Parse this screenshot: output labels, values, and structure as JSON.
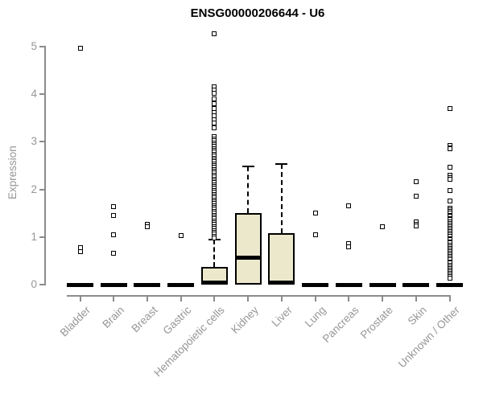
{
  "page": {
    "background": "#FFFFFF"
  },
  "colors": {
    "title": "#000000",
    "axis": "#8C8C8C",
    "tick_text": "#969696",
    "box_fill": "#ECE8CC",
    "box_border": "#000000",
    "median": "#000000",
    "whisker": "#000000",
    "outlier_fill": "#FFFFFF"
  },
  "chart_data": {
    "type": "boxplot",
    "title": "ENSG00000206644 - U6",
    "xlabel": "",
    "ylabel": "Expression",
    "ylim": [
      0,
      5
    ],
    "yticks": [
      0,
      1,
      2,
      3,
      4,
      5
    ],
    "grid": false,
    "legend": null,
    "categories": [
      "Bladder",
      "Brain",
      "Breast",
      "Gastric",
      "Hematopoietic cells",
      "Kidney",
      "Liver",
      "Lung",
      "Pancreas",
      "Prostate",
      "Skin",
      "Unknown / Other"
    ],
    "boxes": [
      {
        "category": "Bladder",
        "q1": 0,
        "median": 0,
        "q3": 0,
        "whisker_low": 0,
        "whisker_high": 0,
        "outliers": [
          4.97,
          0.78,
          0.69
        ]
      },
      {
        "category": "Brain",
        "q1": 0,
        "median": 0,
        "q3": 0,
        "whisker_low": 0,
        "whisker_high": 0,
        "outliers": [
          1.64,
          1.45,
          1.04,
          0.66
        ]
      },
      {
        "category": "Breast",
        "q1": 0,
        "median": 0,
        "q3": 0,
        "whisker_low": 0,
        "whisker_high": 0,
        "outliers": [
          1.27,
          1.21
        ]
      },
      {
        "category": "Gastric",
        "q1": 0,
        "median": 0,
        "q3": 0,
        "whisker_low": 0,
        "whisker_high": 0,
        "outliers": [
          1.03
        ]
      },
      {
        "category": "Hematopoietic cells",
        "q1": 0,
        "median": 0.02,
        "q3": 0.37,
        "whisker_low": 0,
        "whisker_high": 0.95,
        "outliers": [
          5.27,
          4.15,
          4.08,
          4.02,
          3.9,
          3.8,
          3.7,
          3.62,
          3.55,
          3.47,
          3.4,
          3.3,
          3.1,
          3.06,
          3.02,
          2.98,
          2.94,
          2.9,
          2.86,
          2.82,
          2.78,
          2.74,
          2.7,
          2.66,
          2.62,
          2.58,
          2.54,
          2.5,
          2.46,
          2.42,
          2.38,
          2.34,
          2.3,
          2.26,
          2.22,
          2.18,
          2.14,
          2.1,
          2.06,
          2.02,
          1.98,
          1.94,
          1.9,
          1.86,
          1.82,
          1.78,
          1.74,
          1.7,
          1.66,
          1.62,
          1.58,
          1.54,
          1.5,
          1.46,
          1.42,
          1.38,
          1.34,
          1.3,
          1.26,
          1.22,
          1.18,
          1.14,
          1.1,
          1.06,
          1.02,
          0.98
        ]
      },
      {
        "category": "Kidney",
        "q1": 0,
        "median": 0.57,
        "q3": 1.51,
        "whisker_low": 0,
        "whisker_high": 2.48,
        "outliers": []
      },
      {
        "category": "Liver",
        "q1": 0,
        "median": 0.03,
        "q3": 1.08,
        "whisker_low": 0,
        "whisker_high": 2.53,
        "outliers": []
      },
      {
        "category": "Lung",
        "q1": 0,
        "median": 0,
        "q3": 0,
        "whisker_low": 0,
        "whisker_high": 0,
        "outliers": [
          1.5,
          1.04
        ]
      },
      {
        "category": "Pancreas",
        "q1": 0,
        "median": 0,
        "q3": 0,
        "whisker_low": 0,
        "whisker_high": 0,
        "outliers": [
          1.65,
          0.86,
          0.8
        ]
      },
      {
        "category": "Prostate",
        "q1": 0,
        "median": 0,
        "q3": 0,
        "whisker_low": 0,
        "whisker_high": 0,
        "outliers": [
          1.21
        ]
      },
      {
        "category": "Skin",
        "q1": 0,
        "median": 0,
        "q3": 0,
        "whisker_low": 0,
        "whisker_high": 0,
        "outliers": [
          2.16,
          1.86,
          1.31,
          1.27,
          1.23
        ]
      },
      {
        "category": "Unknown / Other",
        "q1": 0,
        "median": 0,
        "q3": 0,
        "whisker_low": 0,
        "whisker_high": 0,
        "outliers": [
          3.7,
          2.92,
          2.88,
          2.85,
          2.47,
          2.3,
          2.25,
          2.21,
          1.97,
          1.75,
          1.6,
          1.57,
          1.53,
          1.5,
          1.46,
          1.43,
          1.39,
          1.36,
          1.32,
          1.29,
          1.25,
          1.22,
          1.18,
          1.15,
          1.11,
          1.08,
          1.04,
          1.01,
          0.97,
          0.94,
          0.9,
          0.87,
          0.83,
          0.8,
          0.76,
          0.73,
          0.69,
          0.66,
          0.62,
          0.59,
          0.55,
          0.52,
          0.48,
          0.45,
          0.41,
          0.38,
          0.34,
          0.31,
          0.27,
          0.24,
          0.2,
          0.17,
          0.13
        ]
      }
    ]
  }
}
